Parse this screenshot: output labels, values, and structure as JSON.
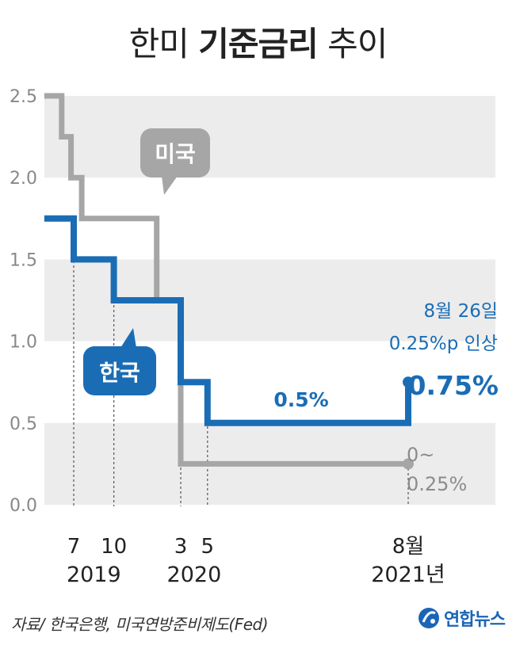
{
  "title": {
    "light_a": "한미 ",
    "bold": "기준금리",
    "light_b": " 추이"
  },
  "source": "자료/ 한국은행, 미국연방준비제도(Fed)",
  "logo_text": "연합뉴스",
  "colors": {
    "korea": "#1a6db5",
    "us": "#a6a6a6",
    "band": "#ececec",
    "text": "#222222"
  },
  "chart_data": {
    "type": "line",
    "subtype": "step",
    "ylim": [
      0.0,
      2.5
    ],
    "y_ticks": [
      "0.0",
      "0.5",
      "1.0",
      "1.5",
      "2.0",
      "2.5"
    ],
    "x_ticks": [
      {
        "label": "7",
        "x": 0
      },
      {
        "label": "10",
        "x": 3
      },
      {
        "label": "3",
        "x": 8
      },
      {
        "label": "5",
        "x": 10
      },
      {
        "label": "8월",
        "x": 25
      }
    ],
    "year_labels": [
      {
        "label": "2019",
        "x": 1.5
      },
      {
        "label": "2020",
        "x": 9
      },
      {
        "label": "2021년",
        "x": 25
      }
    ],
    "series": [
      {
        "name": "미국",
        "color": "#a6a6a6",
        "points": [
          [
            -2.2,
            2.5
          ],
          [
            -0.9,
            2.5
          ],
          [
            -0.9,
            2.25
          ],
          [
            -0.2,
            2.25
          ],
          [
            -0.2,
            2.0
          ],
          [
            0.6,
            2.0
          ],
          [
            0.6,
            1.75
          ],
          [
            6.2,
            1.75
          ],
          [
            6.2,
            1.25
          ],
          [
            8,
            1.25
          ],
          [
            8,
            0.25
          ],
          [
            25,
            0.25
          ]
        ]
      },
      {
        "name": "한국",
        "color": "#1a6db5",
        "points": [
          [
            -2.2,
            1.75
          ],
          [
            0,
            1.75
          ],
          [
            0,
            1.5
          ],
          [
            3,
            1.5
          ],
          [
            3,
            1.25
          ],
          [
            8,
            1.25
          ],
          [
            8,
            0.75
          ],
          [
            10,
            0.75
          ],
          [
            10,
            0.5
          ],
          [
            25,
            0.5
          ],
          [
            25,
            0.75
          ]
        ]
      }
    ],
    "annotations": {
      "us_label": "미국",
      "korea_label": "한국",
      "korea_mid": "0.5%",
      "korea_end": "0.75%",
      "korea_note_1": "8월 26일",
      "korea_note_2": "0.25%p 인상",
      "us_end_1": "0~",
      "us_end_2": "0.25%"
    }
  }
}
